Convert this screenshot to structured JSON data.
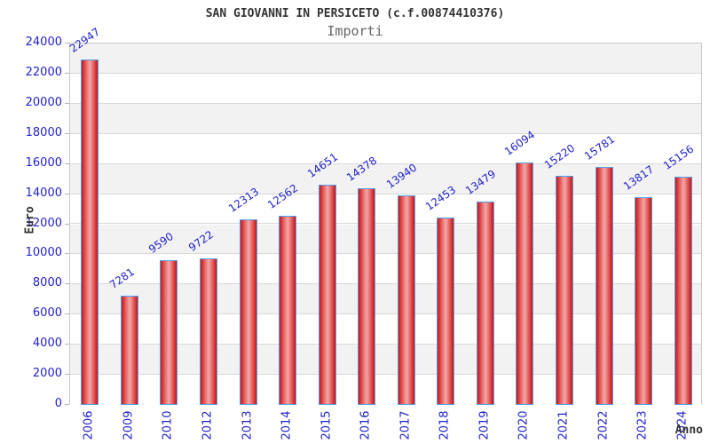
{
  "header": {
    "title": "SAN GIOVANNI IN PERSICETO (c.f.00874410376)",
    "subtitle": "Importi"
  },
  "chart_data": {
    "type": "bar",
    "title": "SAN GIOVANNI IN PERSICETO (c.f.00874410376)",
    "subtitle": "Importi",
    "categories": [
      "2006",
      "2009",
      "2010",
      "2012",
      "2013",
      "2014",
      "2015",
      "2016",
      "2017",
      "2018",
      "2019",
      "2020",
      "2021",
      "2022",
      "2023",
      "2024"
    ],
    "values": [
      22947,
      7281,
      9590,
      9722,
      12313,
      12562,
      14651,
      14378,
      13940,
      12453,
      13479,
      16094,
      15220,
      15781,
      13817,
      15156
    ],
    "xlabel": "Anno",
    "ylabel": "Euro",
    "ylim": [
      0,
      24000
    ],
    "ytick_step": 2000,
    "grid": "horizontal-bands",
    "legend": "none",
    "bar_value_labels_rotated": true,
    "colors": {
      "bar_edge_red": "#c81414",
      "bar_center_pink": "#f2a0a0",
      "bar_border_blue": "#58a0e8",
      "tick_label_blue": "#2222cc",
      "band_gray": "#f2f2f2",
      "gridline_gray": "#d9d9d9",
      "plot_border_gray": "#c9c9c9",
      "title_color": "#333333",
      "subtitle_color": "#666666"
    }
  }
}
